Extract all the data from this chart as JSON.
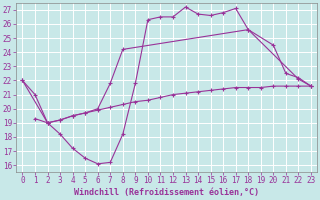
{
  "xlabel": "Windchill (Refroidissement éolien,°C)",
  "xlim": [
    -0.5,
    23.5
  ],
  "ylim": [
    15.5,
    27.5
  ],
  "xticks": [
    0,
    1,
    2,
    3,
    4,
    5,
    6,
    7,
    8,
    9,
    10,
    11,
    12,
    13,
    14,
    15,
    16,
    17,
    18,
    19,
    20,
    21,
    22,
    23
  ],
  "yticks": [
    16,
    17,
    18,
    19,
    20,
    21,
    22,
    23,
    24,
    25,
    26,
    27
  ],
  "background_color": "#c8e8e8",
  "grid_color": "#b0d8d8",
  "line_color": "#993399",
  "line1": [
    [
      0,
      22
    ],
    [
      1,
      21
    ],
    [
      2,
      19
    ],
    [
      3,
      18.2
    ],
    [
      4,
      17.2
    ],
    [
      5,
      16.5
    ],
    [
      6,
      16.1
    ],
    [
      7,
      16.2
    ],
    [
      8,
      18.2
    ],
    [
      9,
      21.8
    ],
    [
      10,
      26.3
    ],
    [
      11,
      26.5
    ],
    [
      12,
      26.5
    ],
    [
      13,
      27.2
    ],
    [
      14,
      26.7
    ],
    [
      15,
      26.6
    ],
    [
      16,
      26.8
    ],
    [
      17,
      27.1
    ],
    [
      18,
      25.6
    ],
    [
      22,
      22.1
    ],
    [
      23,
      21.6
    ]
  ],
  "line2": [
    [
      0,
      22
    ],
    [
      2,
      19
    ],
    [
      3,
      19.2
    ],
    [
      4,
      19.5
    ],
    [
      5,
      19.7
    ],
    [
      6,
      20.0
    ],
    [
      7,
      21.8
    ],
    [
      8,
      24.2
    ],
    [
      18,
      25.6
    ],
    [
      20,
      24.5
    ],
    [
      21,
      22.5
    ],
    [
      22,
      22.2
    ],
    [
      23,
      21.6
    ]
  ],
  "line3": [
    [
      1,
      19.3
    ],
    [
      2,
      19.0
    ],
    [
      3,
      19.2
    ],
    [
      4,
      19.5
    ],
    [
      5,
      19.7
    ],
    [
      6,
      19.9
    ],
    [
      7,
      20.1
    ],
    [
      8,
      20.3
    ],
    [
      9,
      20.5
    ],
    [
      10,
      20.6
    ],
    [
      11,
      20.8
    ],
    [
      12,
      21.0
    ],
    [
      13,
      21.1
    ],
    [
      14,
      21.2
    ],
    [
      15,
      21.3
    ],
    [
      16,
      21.4
    ],
    [
      17,
      21.5
    ],
    [
      18,
      21.5
    ],
    [
      19,
      21.5
    ],
    [
      20,
      21.6
    ],
    [
      21,
      21.6
    ],
    [
      22,
      21.6
    ],
    [
      23,
      21.6
    ]
  ],
  "tick_fontsize": 5.5,
  "label_fontsize": 6.0
}
